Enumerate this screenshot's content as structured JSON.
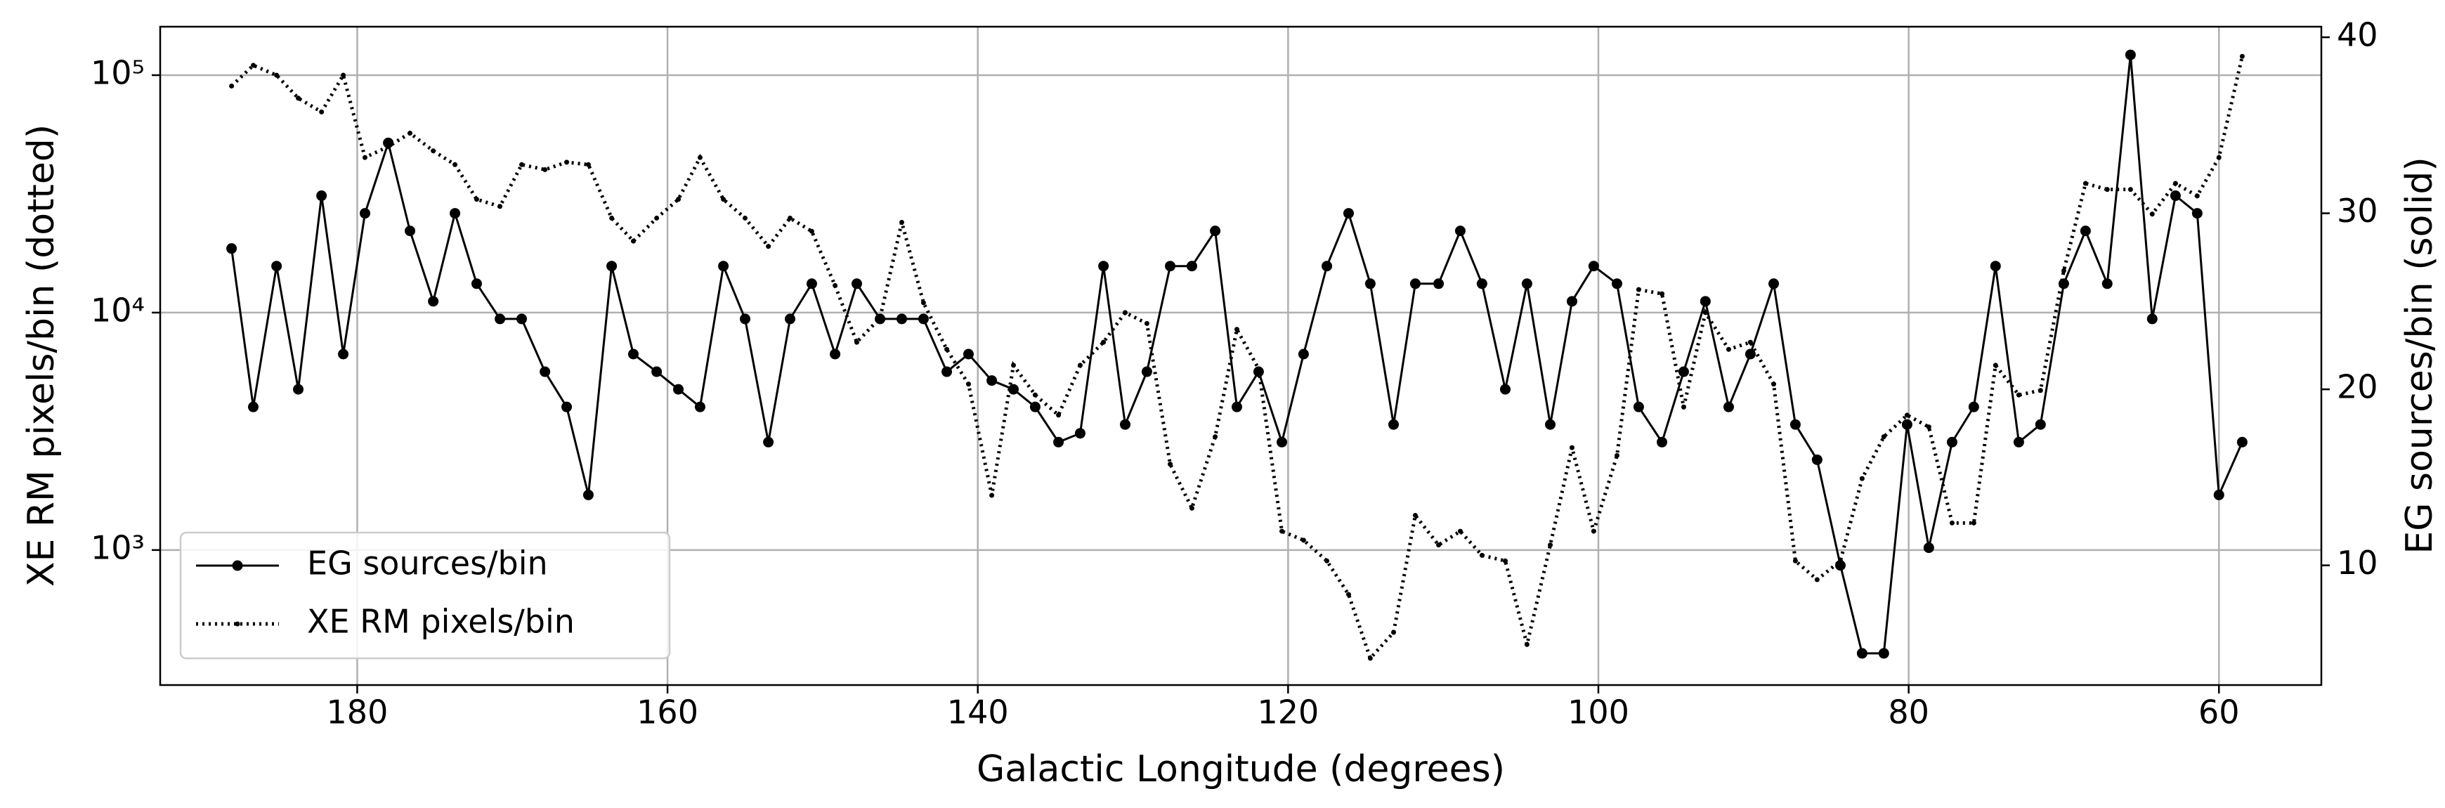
{
  "chart_data": {
    "type": "line",
    "xlabel": "Galactic Longitude (degrees)",
    "ylabel": "XE RM pixels/bin (dotted)",
    "y2label": "EG sources/bin (solid)",
    "x": [
      188.1,
      186.7,
      185.2,
      183.8,
      182.3,
      180.9,
      179.5,
      178.0,
      176.6,
      175.1,
      173.7,
      172.3,
      170.8,
      169.4,
      167.9,
      166.5,
      165.1,
      163.6,
      162.2,
      160.7,
      159.3,
      157.9,
      156.4,
      155.0,
      153.5,
      152.1,
      150.7,
      149.2,
      147.8,
      146.3,
      144.9,
      143.5,
      142.0,
      140.6,
      139.1,
      137.7,
      136.3,
      134.8,
      133.4,
      131.9,
      130.5,
      129.1,
      127.6,
      126.2,
      124.7,
      123.3,
      121.9,
      120.4,
      119.0,
      117.5,
      116.1,
      114.7,
      113.2,
      111.8,
      110.3,
      108.9,
      107.5,
      106.0,
      104.6,
      103.1,
      101.7,
      100.3,
      98.8,
      97.4,
      95.9,
      94.5,
      93.1,
      91.6,
      90.2,
      88.7,
      87.3,
      85.9,
      84.4,
      83.0,
      81.6,
      80.1,
      78.7,
      77.2,
      75.8,
      74.4,
      72.9,
      71.5,
      70.0,
      68.6,
      67.2,
      65.7,
      64.3,
      62.8,
      61.4,
      60.0,
      58.5
    ],
    "xlim": [
      192.7,
      53.4
    ],
    "xticks": [
      180,
      160,
      140,
      120,
      100,
      80,
      60
    ],
    "ylim": [
      270,
      160000
    ],
    "log_y": true,
    "yticks": [
      {
        "value": 1000,
        "label": "10³"
      },
      {
        "value": 10000,
        "label": "10⁴"
      },
      {
        "value": 100000,
        "label": "10⁵"
      }
    ],
    "y2lim": [
      3.2,
      40.6
    ],
    "y2ticks": [
      10,
      20,
      30,
      40
    ],
    "grid": true,
    "legend": "lower left",
    "series": [
      {
        "name": "EG sources/bin",
        "color": "#000000",
        "style": "solid",
        "axis": "y2",
        "values": [
          28,
          19,
          27,
          20,
          31,
          22,
          30,
          34,
          29,
          25,
          30,
          26,
          24,
          24,
          21,
          19,
          14,
          27,
          22,
          21,
          20,
          19,
          27,
          24,
          17,
          24,
          26,
          22,
          26,
          24,
          24,
          24,
          21,
          22,
          20.5,
          20,
          19,
          17,
          17.5,
          27,
          18,
          21,
          27,
          27,
          29,
          19,
          21,
          17,
          22,
          27,
          30,
          26,
          18,
          26,
          26,
          29,
          26,
          20,
          26,
          18,
          25,
          27,
          26,
          19,
          17,
          21,
          25,
          19,
          22,
          26,
          18,
          16,
          10,
          5,
          5,
          18,
          11,
          17,
          19,
          27,
          17,
          18,
          26,
          29,
          26,
          39,
          24,
          31,
          30,
          14,
          17
        ]
      },
      {
        "name": "XE RM pixels/bin",
        "color": "#000000",
        "style": "dotted",
        "values": [
          90000,
          110000,
          100000,
          80000,
          70000,
          100000,
          45000,
          50000,
          57000,
          48000,
          42000,
          30000,
          28000,
          42000,
          40000,
          43000,
          42000,
          25000,
          20000,
          25000,
          30000,
          45000,
          30000,
          25000,
          19000,
          25000,
          22000,
          13000,
          7500,
          9500,
          24000,
          11000,
          7000,
          5000,
          1700,
          6000,
          4500,
          3700,
          6000,
          7500,
          10000,
          9000,
          2300,
          1500,
          3000,
          8500,
          5800,
          1200,
          1100,
          900,
          650,
          350,
          450,
          1400,
          1050,
          1200,
          950,
          900,
          400,
          1050,
          2700,
          1200,
          2500,
          12500,
          12000,
          4000,
          10000,
          7000,
          7500,
          5000,
          900,
          750,
          900,
          2000,
          3000,
          3700,
          3300,
          1300,
          1300,
          6000,
          4500,
          4700,
          15000,
          35000,
          33000,
          33000,
          26000,
          35000,
          31000,
          45000,
          120000
        ]
      }
    ]
  }
}
